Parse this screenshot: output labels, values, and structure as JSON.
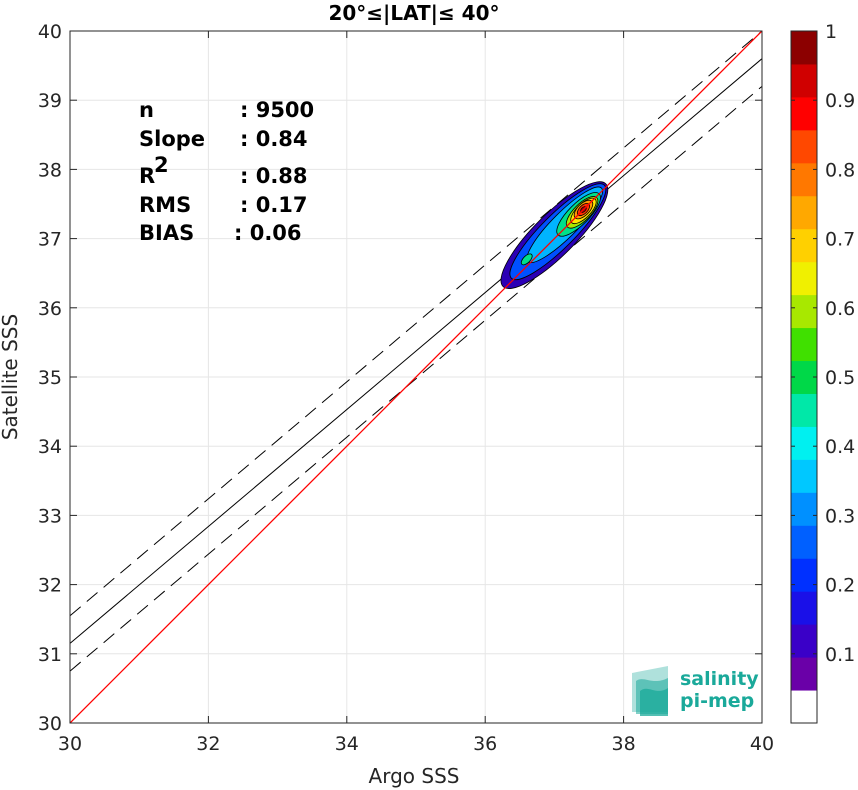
{
  "chart_data": {
    "type": "heatmap",
    "title": "20°≤|LAT|≤ 40°",
    "xlabel": "Argo SSS",
    "ylabel": "Satellite SSS",
    "xlim": [
      30,
      40
    ],
    "ylim": [
      30,
      40
    ],
    "xticks": [
      "30",
      "32",
      "34",
      "36",
      "38",
      "40"
    ],
    "yticks": [
      "30",
      "31",
      "32",
      "33",
      "34",
      "35",
      "36",
      "37",
      "38",
      "39",
      "40"
    ],
    "grid": true,
    "stats": [
      {
        "label": "n",
        "value": ": 9500"
      },
      {
        "label": "Slope",
        "value": ": 0.84"
      },
      {
        "label": "R",
        "sup": "2",
        "value": ": 0.88"
      },
      {
        "label": "RMS",
        "value": ": 0.17"
      },
      {
        "label": "BIAS",
        "value": ": 0.06"
      }
    ],
    "reference_line": {
      "slope": 1,
      "intercept": 0,
      "color": "#ff0000"
    },
    "fit_line": {
      "x": [
        30,
        40
      ],
      "y": [
        31.15,
        39.6
      ]
    },
    "fit_band_upper": {
      "x": [
        30,
        40
      ],
      "y": [
        31.55,
        40.0
      ]
    },
    "fit_band_lower": {
      "x": [
        30,
        40
      ],
      "y": [
        30.75,
        39.2
      ]
    },
    "density_contours": [
      {
        "level": 0.05,
        "center": [
          37.0,
          37.05
        ],
        "rx": 1.05,
        "ry": 0.3,
        "color": "#2b00b5"
      },
      {
        "level": 0.2,
        "center": [
          37.05,
          37.1
        ],
        "rx": 0.95,
        "ry": 0.24,
        "color": "#0050ff"
      },
      {
        "level": 0.3,
        "center": [
          37.15,
          37.2
        ],
        "rx": 0.75,
        "ry": 0.18,
        "color": "#00b4ff"
      },
      {
        "level": 0.45,
        "center": [
          37.35,
          37.35
        ],
        "rx": 0.42,
        "ry": 0.15,
        "color": "#00e08a"
      },
      {
        "level": 0.55,
        "center": [
          37.4,
          37.38
        ],
        "rx": 0.3,
        "ry": 0.12,
        "color": "#a8e800"
      },
      {
        "level": 0.65,
        "center": [
          37.42,
          37.4
        ],
        "rx": 0.24,
        "ry": 0.1,
        "color": "#ffe600"
      },
      {
        "level": 0.75,
        "center": [
          37.42,
          37.42
        ],
        "rx": 0.17,
        "ry": 0.085,
        "color": "#ff9a00"
      },
      {
        "level": 0.85,
        "center": [
          37.42,
          37.42
        ],
        "rx": 0.11,
        "ry": 0.06,
        "color": "#ff3000"
      },
      {
        "level": 1.0,
        "center": [
          37.42,
          37.42
        ],
        "rx": 0.05,
        "ry": 0.03,
        "color": "#a80000"
      }
    ],
    "secondary_peak": {
      "center": [
        36.6,
        36.7
      ],
      "rx": 0.1,
      "ry": 0.05
    },
    "colorbar": {
      "min": 0,
      "max": 1,
      "ticks": [
        "0.1",
        "0.2",
        "0.3",
        "0.4",
        "0.5",
        "0.6",
        "0.7",
        "0.8",
        "0.9",
        "1"
      ],
      "colors": [
        "#ffffff",
        "#6a00a8",
        "#3a00c8",
        "#1a10e8",
        "#0030ff",
        "#0060ff",
        "#0090ff",
        "#00c8ff",
        "#00f0f0",
        "#00e8a8",
        "#00d848",
        "#40e000",
        "#a8e800",
        "#f0f000",
        "#ffd000",
        "#ffa800",
        "#ff7800",
        "#ff4800",
        "#ff0000",
        "#d00000",
        "#8c0000"
      ]
    }
  },
  "logo": {
    "line1": "salinity",
    "line2": "pi-mep",
    "icon": "salinity-waves-logo"
  }
}
